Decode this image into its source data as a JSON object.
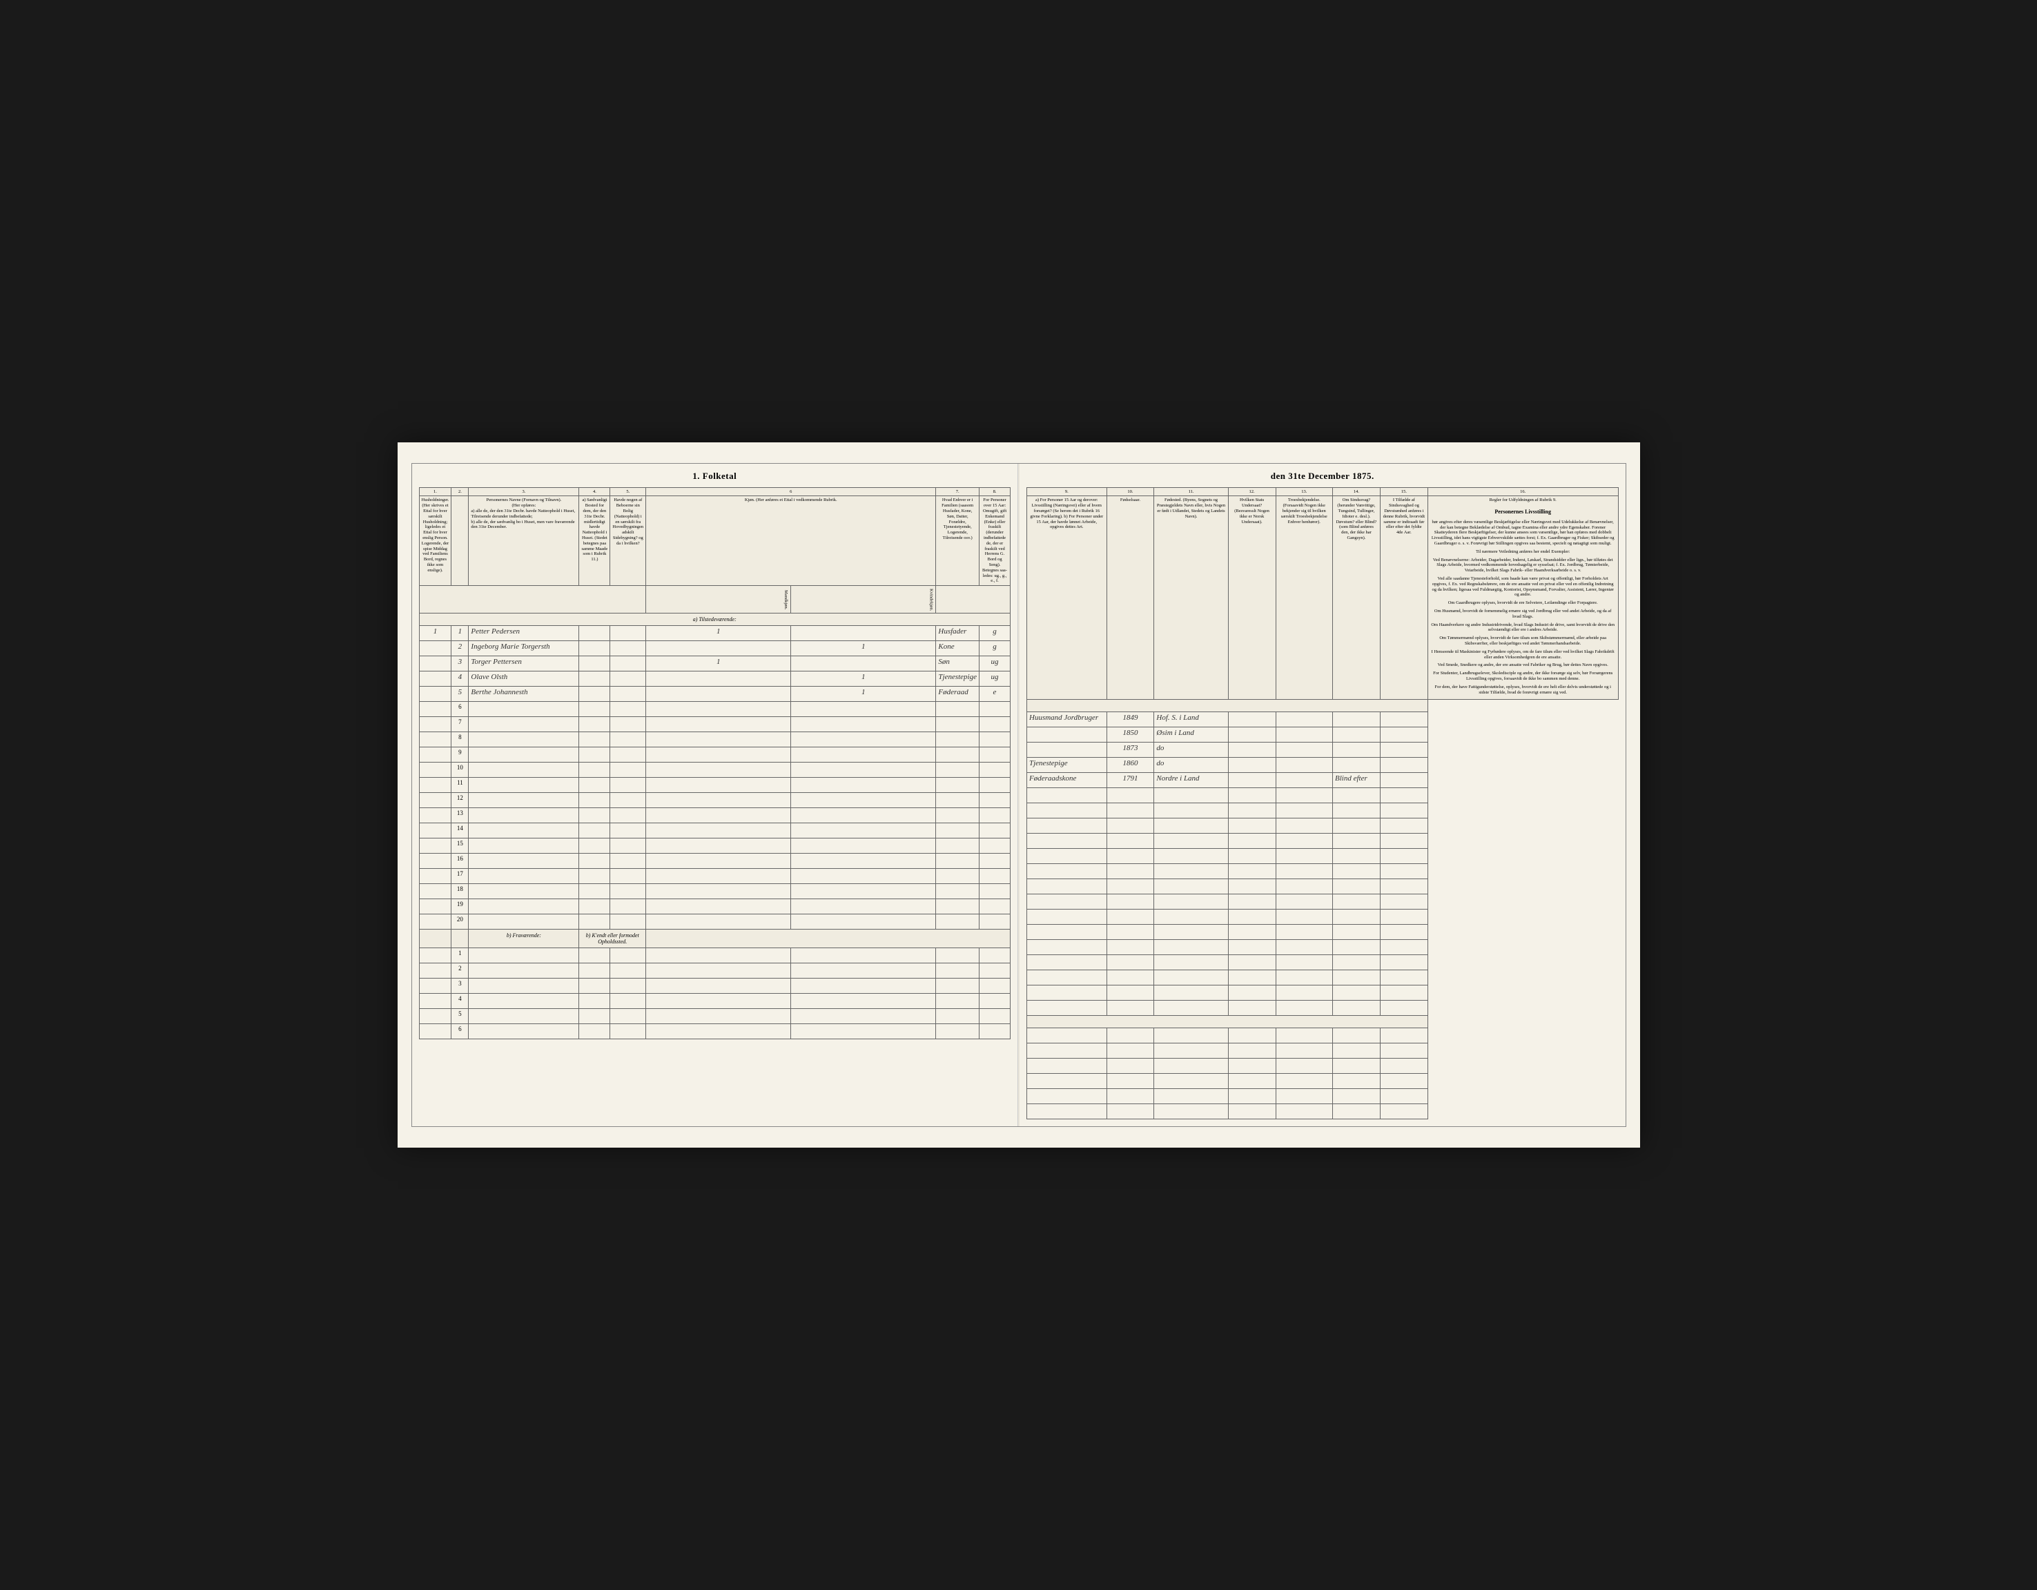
{
  "title_left": "1. Folketal",
  "title_right": "den 31te December 1875.",
  "column_numbers": [
    "1.",
    "2.",
    "3.",
    "4.",
    "5.",
    "6",
    "7.",
    "8.",
    "9.",
    "10.",
    "11.",
    "12.",
    "13.",
    "14.",
    "15.",
    "16."
  ],
  "headers": {
    "col1": "Husholdninger. (Her skrives et Ettal for hver særskilt Husholdning; ligeledes et Ettal for hver enslig Person. Logerende, der spise Middag ved Familiens Bord, regnes ikke som enslige).",
    "col3_title": "Personernes Navne (Fornavn og Tilnavn).",
    "col3_sub": "(Her opføres:",
    "col3_a": "a) alle de, der den 31te Decbr. havde Natteophold i Huset, Tilreisende derunder indbefattede;",
    "col3_b": "b) alle de, der sædvanlig bo i Huset, men vare fraværende den 31te December.",
    "col4": "a) Sædvanligt Bosted for dem, der den 31te Decbr. midlertidigt havde Natteophold i Huset. (Stedet betegnes paa samme Maade som i Rubrik 11.)",
    "col5": "Havde nogen af Beboerne sin Bolig (Natteophold) i en særskilt fra Hovedbygningen adskilt Sidebygning? og da i hvilken?",
    "col6": "Kjøn. (Her anføres et Ettal i vedkommende Rubrik.",
    "col6_m": "Mandkjøn.",
    "col6_k": "Kvindekjøn.",
    "col7": "Hvad Enhver er i Familien (saasom Husfader, Kone, Søn, Datter, Forældre, Tjenestetyende, Logerende, Tilreisende osv.)",
    "col8": "For Personer over 15 Aar: Omugift, gift Enkemand (Enke) eller fraskilt (derunder indbefattede de, der er fraskilt ved Herrens G. Bord og Seng). Betegnes saa-ledes: ug., g., e., f.",
    "col9": "a) For Personer 15 Aar og derover: Livsstilling (Næringsvei) eller af hvem forsørget? (Se herom det i Rubrik 16 givne Forklaring). b) For Personer under 15 Aar, der havde lønnet Arbeide, opgives dettes Art.",
    "col10": "Fødselsaar.",
    "col11": "Fødested. (Byens, Sognets og Præstegjeldets Navn eller, hvis Nogen er født i Udlandet, Stedets og Landets Navn).",
    "col12": "Hvilken Stats Undersaat? (Besvaresslt Nogen ikke er Norsk Undersaat).",
    "col13": "Troesbekjendelse. (Forsaavidt Nogen ikke bekjender sig til hvilken særskilt Troesbekjendelse Enhver henhører).",
    "col14": "Om Sindssvag? (herunder Vanvittige, Tungsind, Tullinger, Idioter e. desl.). Døvstum? eller Blind? (som Blind anføres den, der ikke har Gangsyn).",
    "col15": "I Tilfælde af Sindssvaghed og Døvstumhed anføres i denne Rubrik, hvorvidt samme er indtraadt før eller efter det fyldte 4de Aar.",
    "col16_title": "Regler for Udfyldningen af Rubrik 9."
  },
  "section_a": "a) Tilstedeværende:",
  "section_b": "b) Fraværende:",
  "section_b_sub": "b) K'endt eller formodet Opholdssted.",
  "rows": [
    {
      "num": "1",
      "hh": "1",
      "name": "Petter Pedersen",
      "sex_m": "1",
      "sex_k": "",
      "relation": "Husfader",
      "marital": "g",
      "occupation": "Huusmand Jordbruger",
      "year": "1849",
      "birthplace": "Hof. S. i Land"
    },
    {
      "num": "2",
      "hh": "",
      "name": "Ingeborg Marie Torgersth",
      "sex_m": "",
      "sex_k": "1",
      "relation": "Kone",
      "marital": "g",
      "occupation": "",
      "year": "1850",
      "birthplace": "Øsim i Land"
    },
    {
      "num": "3",
      "hh": "",
      "name": "Torger Pettersen",
      "sex_m": "1",
      "sex_k": "",
      "relation": "Søn",
      "marital": "ug",
      "occupation": "",
      "year": "1873",
      "birthplace": "do",
      "col14": ""
    },
    {
      "num": "4",
      "hh": "",
      "name": "Olave Olsth",
      "sex_m": "",
      "sex_k": "1",
      "relation": "Tjenestepige",
      "marital": "ug",
      "occupation": "Tjenestepige",
      "year": "1860",
      "birthplace": "do",
      "col14": ""
    },
    {
      "num": "5",
      "hh": "",
      "name": "Berthe Johannesth",
      "sex_m": "",
      "sex_k": "1",
      "relation": "Føderaad",
      "marital": "e",
      "occupation": "Føderaadskone",
      "year": "1791",
      "birthplace": "Nordre i Land",
      "col14": "Blind efter"
    }
  ],
  "empty_rows_a": [
    "6",
    "7",
    "8",
    "9",
    "10",
    "11",
    "12",
    "13",
    "14",
    "15",
    "16",
    "17",
    "18",
    "19",
    "20"
  ],
  "empty_rows_b": [
    "1",
    "2",
    "3",
    "4",
    "5",
    "6"
  ],
  "instructions": {
    "title": "Personernes Livsstilling",
    "paragraphs": [
      "bør angives efter deres væsentlige Beskjæftigelse eller Næringsvei med Udelukkelse af Benævnelser, der kan betegne Beklædelse af Ombud, tagne Examina eller andre ydre Egenskaber. Forener Skatteyderen flere Beskjæftigelser, der kunne ansees som væsentlige, bør han opføres med dobbelt Livsstilling, idet hans vigtigste Erhvervskilde sættes forst; f. Ex. Gaardbruger og Fisker; Skibseder og Gaardbruger o. s. v. Forøvrigt bør Stillingen opgives saa bestemt, specielt og nøiagtigt som muligt.",
      "Til nærmere Veiledning anføres her endel Exempler:",
      "Ved Benævnelserne: Arbeider, Dagarbeider, Inderst, Løskarl, Strandsidder eller lign., bør tilføies det Slags Arbeide, hvormed vedkommende hovedsagelig er sysselsat; f. Ex. Jordbrug, Tømterbeide, Veiarbeide, hvilket Slags Fabrik- eller Haandverksarbeide o. s. v.",
      "Ved alle saadanne Tjenesteforhold, som baade kan være privat og offentligt, bør Forholdets Art opgives, f. Ex. ved Regnskabsførere, om de ere ansatte ved en privat eller ved en offentlig Indretning og da hvilken; ligesaa ved Fuldmægtig, Kontorist, Opsynsmand, Forvalter, Assistent, Lærer, Ingeniør og andre.",
      "Om Gaardbrugere oplyses, hvorvidt de ere Selveiere, Leilændinge eller Forpagtere.",
      "Om Husmænd, hvorvidt de fornemmelig ernære sig ved Jordbrug eller ved andet Arbeide, og da af hvad Slags.",
      "Om Haandverkere og andre Industridrivende, hvad Slags Industri de drive, samt hvorvidt de drive den selvstændigt eller ere i andres Arbeide.",
      "Om Tømmermænd oplyses, hvorvidt de fare tilsøs som Skibstømmermænd, eller arbeide paa Skibsværfter, eller beskjæftiges ved andet Tømmerhandsarbeide.",
      "I Henseende til Maskinister og Fyrbødere oplyses, om de fare tilsøs eller ved hvilket Slags Fabrikdrift eller anden Virksomhedgren de ere ansatte.",
      "Ved Smede, Snedkere og andre, der ere ansatte ved Fabriker og Brug, bør dettes Navn opgives.",
      "For Studenter, Landbrugselever, Skoledisciple og andre, der ikke forsørge sig selv, bør Forsørgerens Livsstilling opgives, forsaavidt de ikke bo sammen med denne.",
      "For dem, der have Fattigunderstøttelse, oplyses, hvorvidt de ere helt eller delvis understøttede og i sidste Tilfælde, hvad de forøvrigt ernære sig ved."
    ]
  },
  "colors": {
    "page_bg": "#f5f2e8",
    "border": "#666",
    "header_bg": "#f0ece0"
  }
}
